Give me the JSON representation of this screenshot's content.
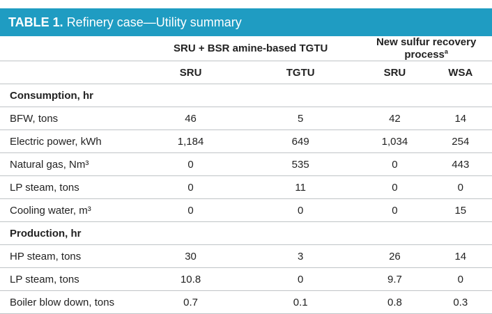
{
  "title": {
    "label": "TABLE 1.",
    "text": "Refinery case—Utility summary"
  },
  "groups": [
    {
      "label": "SRU + BSR amine-based TGTU"
    },
    {
      "label": "New sulfur recovery process",
      "note": "a"
    }
  ],
  "columns": [
    "SRU",
    "TGTU",
    "SRU",
    "WSA"
  ],
  "sections": [
    {
      "label": "Consumption, hr",
      "rows": [
        {
          "label": "BFW, tons",
          "values": [
            "46",
            "5",
            "42",
            "14"
          ]
        },
        {
          "label": "Electric power, kWh",
          "values": [
            "1,184",
            "649",
            "1,034",
            "254"
          ]
        },
        {
          "label": "Natural gas, Nm³",
          "values": [
            "0",
            "535",
            "0",
            "443"
          ]
        },
        {
          "label": "LP steam, tons",
          "values": [
            "0",
            "11",
            "0",
            "0"
          ]
        },
        {
          "label": "Cooling water, m³",
          "values": [
            "0",
            "0",
            "0",
            "15"
          ]
        }
      ]
    },
    {
      "label": "Production, hr",
      "rows": [
        {
          "label": "HP steam, tons",
          "values": [
            "30",
            "3",
            "26",
            "14"
          ]
        },
        {
          "label": "LP steam, tons",
          "values": [
            "10.8",
            "0",
            "9.7",
            "0"
          ]
        },
        {
          "label": "Boiler blow down, tons",
          "values": [
            "0.7",
            "0.1",
            "0.8",
            "0.3"
          ]
        }
      ]
    }
  ],
  "colors": {
    "header_bg": "#1f9cc2",
    "rule": "#bfc3c6"
  }
}
